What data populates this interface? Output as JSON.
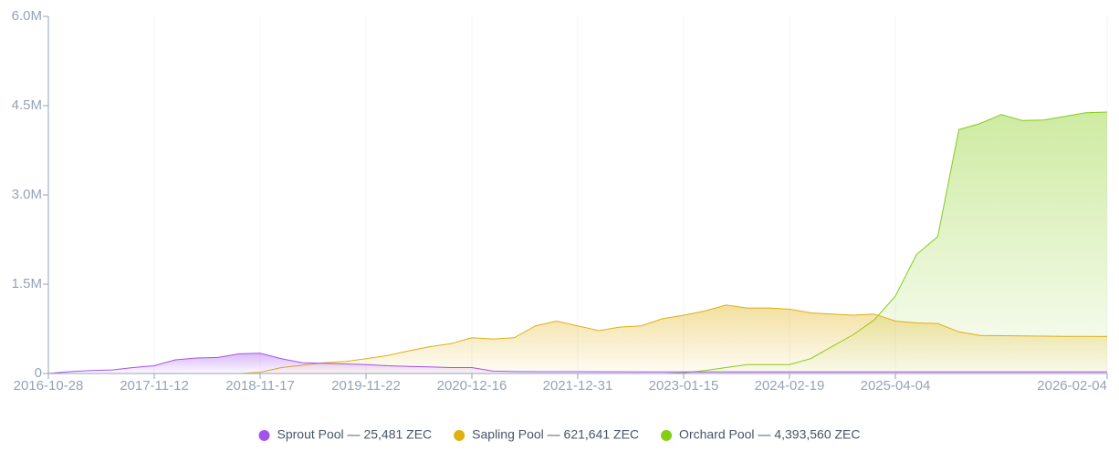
{
  "chart_data": {
    "type": "area",
    "categories": [
      "2016-10-28",
      null,
      null,
      null,
      null,
      "2017-11-12",
      null,
      null,
      null,
      null,
      "2018-11-17",
      null,
      null,
      null,
      null,
      "2019-11-22",
      null,
      null,
      null,
      null,
      "2020-12-16",
      null,
      null,
      null,
      null,
      "2021-12-31",
      null,
      null,
      null,
      null,
      "2023-01-15",
      null,
      null,
      null,
      null,
      "2024-02-19",
      null,
      null,
      null,
      null,
      "2025-04-04",
      null,
      null,
      null,
      null,
      null,
      null,
      null,
      null,
      null,
      "2026-02-04"
    ],
    "series": [
      {
        "name": "Sprout Pool — 25,481 ZEC",
        "color": "#a452ef",
        "values": [
          0,
          30000,
          50000,
          60000,
          100000,
          130000,
          230000,
          260000,
          270000,
          330000,
          340000,
          250000,
          180000,
          170000,
          160000,
          150000,
          130000,
          120000,
          110000,
          100000,
          100000,
          40000,
          32000,
          31000,
          30000,
          30000,
          29000,
          29000,
          28000,
          28000,
          28000,
          27500,
          27500,
          27000,
          27000,
          27000,
          26800,
          26600,
          26500,
          26400,
          26300,
          26200,
          26100,
          26000,
          25900,
          25800,
          25700,
          25600,
          25550,
          25500,
          25481
        ]
      },
      {
        "name": "Sapling Pool — 621,641 ZEC",
        "color": "#e0b00e",
        "values": [
          0,
          0,
          0,
          0,
          0,
          0,
          0,
          0,
          0,
          0,
          20000,
          100000,
          140000,
          180000,
          200000,
          250000,
          300000,
          380000,
          450000,
          500000,
          600000,
          580000,
          600000,
          800000,
          880000,
          800000,
          720000,
          780000,
          800000,
          920000,
          980000,
          1050000,
          1150000,
          1100000,
          1100000,
          1080000,
          1020000,
          1000000,
          980000,
          1000000,
          880000,
          850000,
          840000,
          700000,
          640000,
          635000,
          630000,
          628000,
          625000,
          623000,
          621641
        ]
      },
      {
        "name": "Orchard Pool — 4,393,560 ZEC",
        "color": "#84cc16",
        "values": [
          0,
          0,
          0,
          0,
          0,
          0,
          0,
          0,
          0,
          0,
          0,
          0,
          0,
          0,
          0,
          0,
          0,
          0,
          0,
          0,
          0,
          0,
          0,
          0,
          0,
          0,
          0,
          0,
          0,
          0,
          10000,
          50000,
          100000,
          150000,
          150000,
          150000,
          250000,
          450000,
          650000,
          900000,
          1300000,
          2000000,
          2300000,
          4100000,
          4200000,
          4350000,
          4250000,
          4260000,
          4320000,
          4380000,
          4393560
        ]
      }
    ],
    "ylim": [
      0,
      6000000
    ],
    "yticks": [
      0,
      {
        "value": 1500000,
        "label": "1.5M"
      },
      {
        "value": 3000000,
        "label": "3.0M"
      },
      {
        "value": 4500000,
        "label": "4.5M"
      },
      {
        "value": 6000000,
        "label": "6.0M"
      }
    ],
    "grid": true
  }
}
